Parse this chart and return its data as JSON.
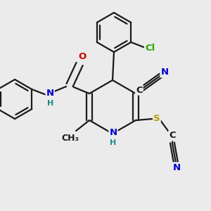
{
  "bg_color": "#ebebeb",
  "bond_color": "#1a1a1a",
  "bond_width": 1.6,
  "atom_colors": {
    "C": "#1a1a1a",
    "N": "#0000cc",
    "O": "#cc0000",
    "S": "#b8a000",
    "Cl": "#22aa00",
    "H": "#1a8a8a"
  },
  "font_size": 9.5
}
